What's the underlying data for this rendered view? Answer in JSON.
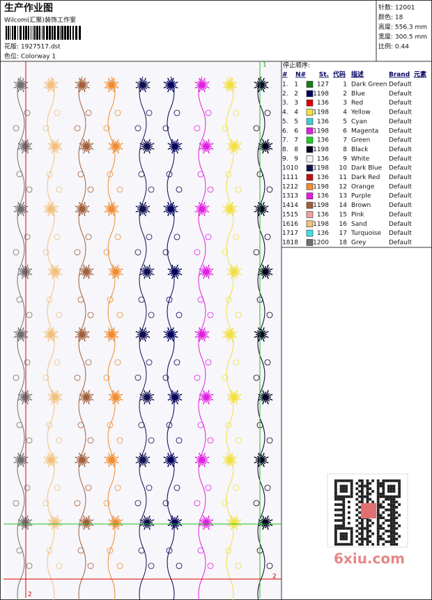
{
  "header": {
    "title": "生产作业图",
    "studio": "Wilcom(汇聚)装饰工作室",
    "design_file": "花版: 1927517.dst",
    "colorway": "色位: Colorway 1"
  },
  "info": [
    "针数: 12001",
    "颜色: 18",
    "高度: 556.3 mm",
    "宽度: 300.5 mm",
    "比例: 0.44"
  ],
  "table": {
    "title": "停止顺序:",
    "headers": [
      "#",
      "N#",
      "St.",
      "代码",
      "描述",
      "Brand",
      "元素"
    ],
    "rows": [
      [
        "1.",
        "1",
        "#1a7a1a",
        "127",
        "1",
        "Dark Green",
        "Default"
      ],
      [
        "2.",
        "2",
        "#00005a",
        "1198",
        "2",
        "Blue",
        "Default"
      ],
      [
        "3.",
        "3",
        "#e00000",
        "136",
        "3",
        "Red",
        "Default"
      ],
      [
        "4.",
        "4",
        "#f2e040",
        "1198",
        "4",
        "Yellow",
        "Default"
      ],
      [
        "5.",
        "5",
        "#40d0d0",
        "136",
        "5",
        "Cyan",
        "Default"
      ],
      [
        "6.",
        "6",
        "#e020e0",
        "1198",
        "6",
        "Magenta",
        "Default"
      ],
      [
        "7.",
        "7",
        "#20d020",
        "136",
        "7",
        "Green",
        "Default"
      ],
      [
        "8.",
        "8",
        "#000020",
        "1198",
        "8",
        "Black",
        "Default"
      ],
      [
        "9.",
        "9",
        "#f4f4f4",
        "136",
        "9",
        "White",
        "Default"
      ],
      [
        "10.",
        "10",
        "#101050",
        "1198",
        "10",
        "Dark Blue",
        "Default"
      ],
      [
        "11.",
        "11",
        "#c01010",
        "136",
        "11",
        "Dark Red",
        "Default"
      ],
      [
        "12.",
        "12",
        "#f08c30",
        "1198",
        "12",
        "Orange",
        "Default"
      ],
      [
        "13.",
        "13",
        "#e020e0",
        "136",
        "13",
        "Purple",
        "Default"
      ],
      [
        "14.",
        "14",
        "#a0603c",
        "1198",
        "14",
        "Brown",
        "Default"
      ],
      [
        "15.",
        "15",
        "#f0a0a0",
        "136",
        "15",
        "Pink",
        "Default"
      ],
      [
        "16.",
        "16",
        "#f2c07c",
        "1198",
        "16",
        "Sand",
        "Default"
      ],
      [
        "17.",
        "17",
        "#40e0e0",
        "136",
        "17",
        "Turquoise",
        "Default"
      ],
      [
        "18.",
        "18",
        "#707070",
        "1200",
        "18",
        "Grey",
        "Default"
      ]
    ]
  },
  "markers": [
    "1",
    "2",
    "2"
  ],
  "watermark": "6xiu.com"
}
